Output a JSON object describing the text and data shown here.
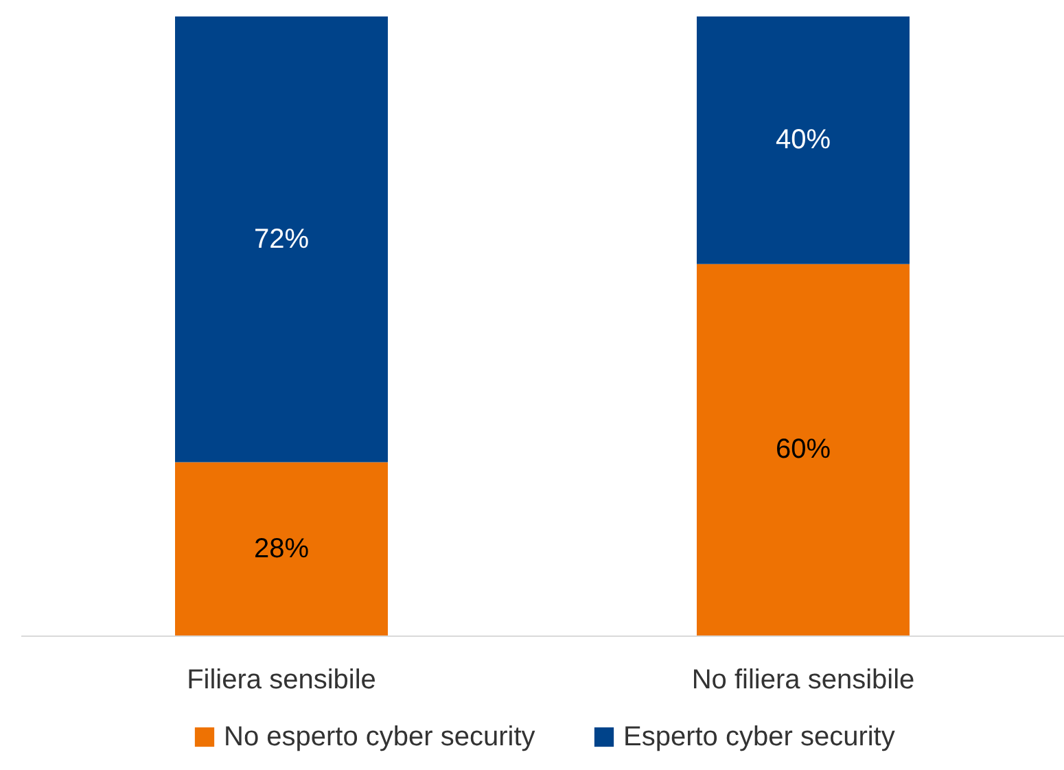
{
  "chart_data": {
    "type": "bar",
    "stacked": true,
    "categories": [
      "Filiera sensibile",
      "No filiera sensibile"
    ],
    "series": [
      {
        "name": "No esperto cyber security",
        "color": "#ee7203",
        "values": [
          28,
          60
        ],
        "value_labels": [
          "28%",
          "60%"
        ]
      },
      {
        "name": "Esperto cyber security",
        "color": "#00438a",
        "values": [
          72,
          40
        ],
        "value_labels": [
          "72%",
          "40%"
        ]
      }
    ],
    "legend": "bottom"
  }
}
